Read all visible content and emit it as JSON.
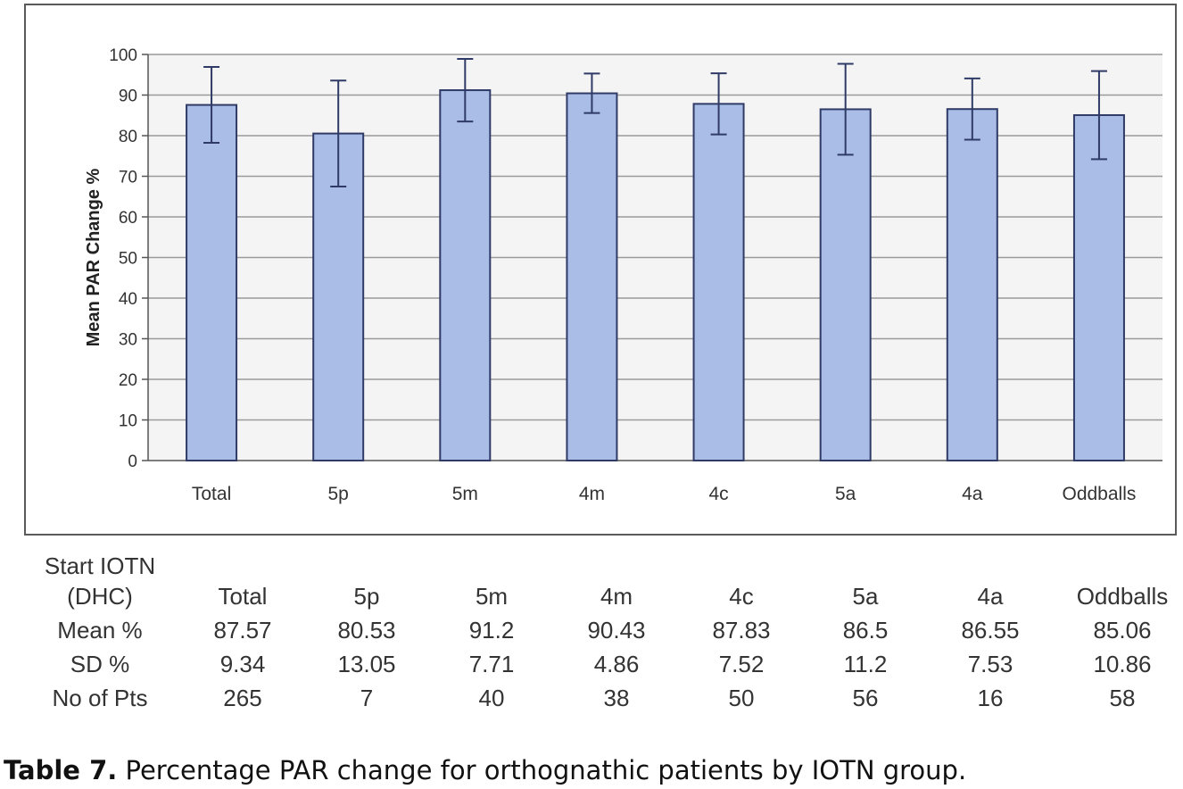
{
  "chart_data": {
    "type": "bar",
    "title": "",
    "xlabel": "",
    "ylabel": "Mean PAR Change %",
    "ylim": [
      0,
      100
    ],
    "yticks": [
      0,
      10,
      20,
      30,
      40,
      50,
      60,
      70,
      80,
      90,
      100
    ],
    "grid": true,
    "categories": [
      "Total",
      "5p",
      "5m",
      "4m",
      "4c",
      "5a",
      "4a",
      "Oddballs"
    ],
    "values": [
      87.57,
      80.53,
      91.2,
      90.43,
      87.83,
      86.5,
      86.55,
      85.06
    ],
    "error": [
      9.34,
      13.05,
      7.71,
      4.86,
      7.52,
      11.2,
      7.53,
      10.86
    ],
    "colors": {
      "bar_fill": "#a9bde6",
      "bar_stroke": "#2f3b66",
      "plot_bg": "#f4f4f4",
      "grid": "#9a9a9a"
    }
  },
  "table": {
    "header_label": [
      "Start IOTN",
      "(DHC)"
    ],
    "columns": [
      "Total",
      "5p",
      "5m",
      "4m",
      "4c",
      "5a",
      "4a",
      "Oddballs"
    ],
    "rows": [
      {
        "label": "Mean %",
        "values": [
          "87.57",
          "80.53",
          "91.2",
          "90.43",
          "87.83",
          "86.5",
          "86.55",
          "85.06"
        ]
      },
      {
        "label": "SD %",
        "values": [
          "9.34",
          "13.05",
          "7.71",
          "4.86",
          "7.52",
          "11.2",
          "7.53",
          "10.86"
        ]
      },
      {
        "label": "No of Pts",
        "values": [
          "265",
          "7",
          "40",
          "38",
          "50",
          "56",
          "16",
          "58"
        ]
      }
    ]
  },
  "caption": {
    "label": "Table 7.",
    "text": " Percentage PAR change for orthognathic patients by IOTN group."
  }
}
